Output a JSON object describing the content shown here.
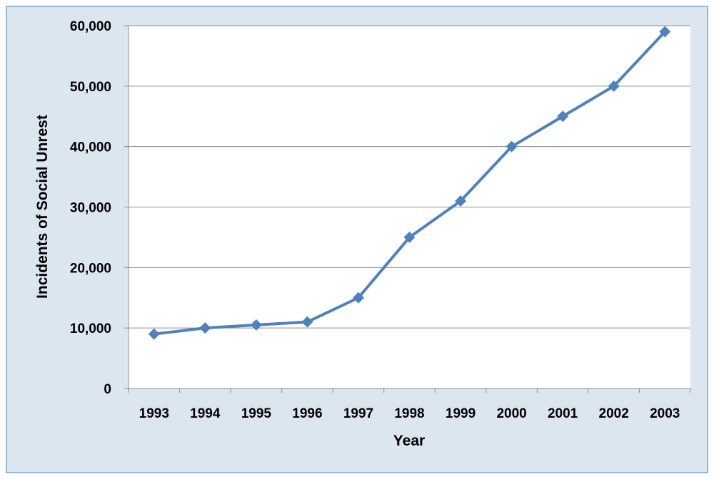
{
  "chart_data": {
    "type": "line",
    "title": "",
    "xlabel": "Year",
    "ylabel": "Incidents of Social Unrest",
    "categories": [
      "1993",
      "1994",
      "1995",
      "1996",
      "1997",
      "1998",
      "1999",
      "2000",
      "2001",
      "2002",
      "2003"
    ],
    "series": [
      {
        "values": [
          9000,
          10000,
          10500,
          11000,
          15000,
          25000,
          31000,
          40000,
          45000,
          50000,
          59000
        ]
      }
    ],
    "ylim": [
      0,
      60000
    ],
    "yticks": [
      0,
      10000,
      20000,
      30000,
      40000,
      50000,
      60000
    ],
    "ytick_labels": [
      "0",
      "10,000",
      "20,000",
      "30,000",
      "40,000",
      "50,000",
      "60,000"
    ],
    "grid": true,
    "marker": "diamond",
    "colors": {
      "line": "#4f81bd",
      "background": "#dce6f1",
      "plot_area": "#ffffff",
      "border": "#9db5d6"
    }
  }
}
